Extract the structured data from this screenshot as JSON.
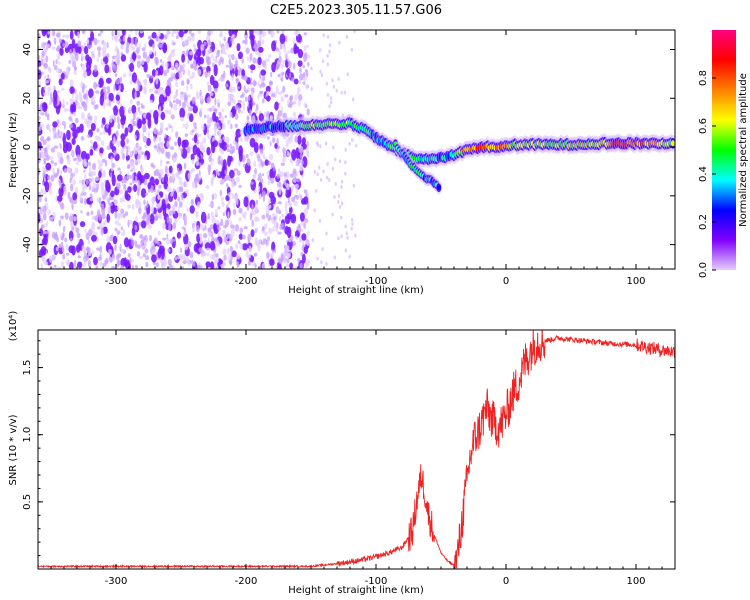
{
  "title": "C2E5.2023.305.11.57.G06",
  "chart_data": [
    {
      "type": "heatmap",
      "xlabel": "Height of straight line (km)",
      "ylabel": "Frequency (Hz)",
      "xlim": [
        -360,
        130
      ],
      "ylim": [
        -50,
        48
      ],
      "x_ticks": [
        -300,
        -200,
        -100,
        0,
        100
      ],
      "y_ticks": [
        -40,
        -20,
        0,
        20,
        40
      ],
      "colorbar": {
        "label": "Normalized spectral amplitude",
        "range": [
          0.0,
          1.0
        ],
        "ticks": [
          0.0,
          0.2,
          0.4,
          0.6,
          0.8
        ],
        "tick_labels": [
          "0.0",
          "0.2",
          "0.4",
          "0.6",
          "0.8"
        ],
        "colors": [
          "#e6ccff",
          "#8000ff",
          "#0000ff",
          "#00ffff",
          "#00ff00",
          "#ffff00",
          "#ff8000",
          "#ff0000",
          "#ff0080"
        ]
      },
      "noise_region_x": [
        -360,
        -152
      ],
      "ridge": [
        {
          "x": -200,
          "y": 7,
          "a": 0.2
        },
        {
          "x": -185,
          "y": 8,
          "a": 0.25
        },
        {
          "x": -170,
          "y": 8.5,
          "a": 0.3
        },
        {
          "x": -150,
          "y": 9,
          "a": 0.55
        },
        {
          "x": -135,
          "y": 9.5,
          "a": 0.5
        },
        {
          "x": -120,
          "y": 9.5,
          "a": 0.45
        },
        {
          "x": -108,
          "y": 7,
          "a": 0.35
        },
        {
          "x": -98,
          "y": 3,
          "a": 0.35
        },
        {
          "x": -88,
          "y": 0,
          "a": 0.4
        },
        {
          "x": -78,
          "y": -3,
          "a": 0.45
        },
        {
          "x": -68,
          "y": -5,
          "a": 0.4
        },
        {
          "x": -58,
          "y": -5,
          "a": 0.35
        },
        {
          "x": -45,
          "y": -4,
          "a": 0.3
        },
        {
          "x": -35,
          "y": -2,
          "a": 0.6
        },
        {
          "x": -20,
          "y": 0,
          "a": 0.75
        },
        {
          "x": -5,
          "y": 0,
          "a": 0.7
        },
        {
          "x": 10,
          "y": 1,
          "a": 0.5
        },
        {
          "x": 30,
          "y": 1,
          "a": 0.5
        },
        {
          "x": 50,
          "y": 1,
          "a": 0.55
        },
        {
          "x": 70,
          "y": 1.5,
          "a": 0.6
        },
        {
          "x": 90,
          "y": 1.5,
          "a": 0.85
        },
        {
          "x": 105,
          "y": 1.5,
          "a": 0.7
        },
        {
          "x": 130,
          "y": 1.5,
          "a": 0.5
        }
      ],
      "side_branch": [
        {
          "x": -85,
          "y": 1,
          "a": 0.35
        },
        {
          "x": -75,
          "y": -6,
          "a": 0.35
        },
        {
          "x": -65,
          "y": -11,
          "a": 0.35
        },
        {
          "x": -55,
          "y": -15,
          "a": 0.3
        },
        {
          "x": -50,
          "y": -17,
          "a": 0.25
        }
      ]
    },
    {
      "type": "line",
      "xlabel": "Height of straight line (km)",
      "ylabel": "SNR (10 * v/v)",
      "y_multiplier": "(x10⁴)",
      "xlim": [
        -360,
        130
      ],
      "ylim": [
        0,
        1.78
      ],
      "x_ticks": [
        -300,
        -200,
        -100,
        0,
        100
      ],
      "y_ticks": [
        0.5,
        1.0,
        1.5
      ],
      "y_tick_labels": [
        "0.5",
        "1.0",
        "1.5"
      ],
      "line_color": "#ee2222",
      "series": [
        {
          "x": [
            -360,
            -300,
            -250,
            -200,
            -150,
            -130,
            -115,
            -100,
            -90,
            -80,
            -72,
            -68,
            -65,
            -62,
            -60,
            -55,
            -50,
            -45,
            -42,
            -40,
            -38,
            -35,
            -32,
            -30,
            -28,
            -25,
            -20,
            -15,
            -10,
            -5,
            0,
            5,
            10,
            15,
            20,
            25,
            30,
            40,
            60,
            80,
            100,
            110,
            115,
            120,
            130
          ],
          "y": [
            0.02,
            0.02,
            0.02,
            0.02,
            0.02,
            0.04,
            0.06,
            0.09,
            0.12,
            0.16,
            0.28,
            0.55,
            0.7,
            0.55,
            0.42,
            0.25,
            0.12,
            0.06,
            0.04,
            0.03,
            0.06,
            0.25,
            0.5,
            0.65,
            0.8,
            0.95,
            1.05,
            1.2,
            1.1,
            1.05,
            1.15,
            1.3,
            1.4,
            1.55,
            1.65,
            1.7,
            1.7,
            1.72,
            1.7,
            1.68,
            1.67,
            1.65,
            1.64,
            1.63,
            1.62
          ]
        }
      ]
    }
  ]
}
